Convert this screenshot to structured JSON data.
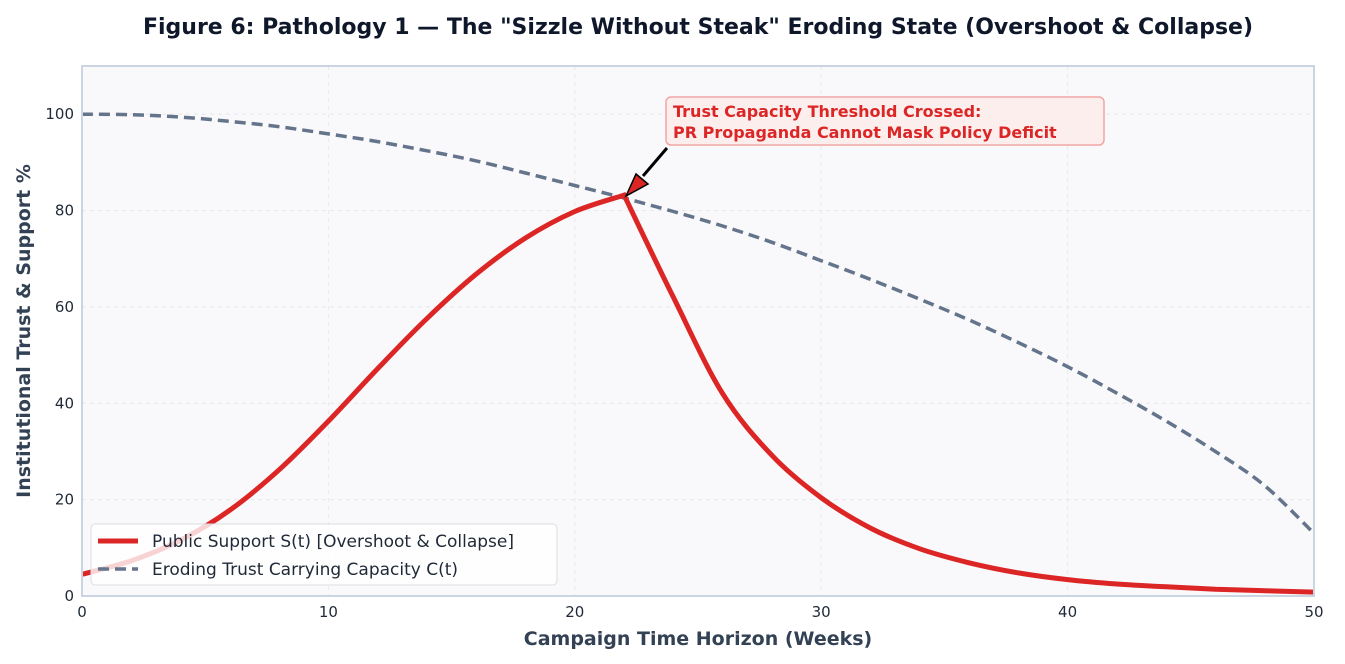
{
  "chart_data": {
    "type": "line",
    "title": "Figure 6: Pathology 1 — The \"Sizzle Without Steak\" Eroding State (Overshoot & Collapse)",
    "xlabel": "Campaign Time Horizon (Weeks)",
    "ylabel": "Institutional Trust & Support %",
    "xlim": [
      0,
      50
    ],
    "ylim": [
      0,
      110
    ],
    "xticks": [
      0,
      10,
      20,
      30,
      40,
      50
    ],
    "yticks": [
      0,
      20,
      40,
      60,
      80,
      100
    ],
    "grid": true,
    "legend_position": "lower-left",
    "series": [
      {
        "name": "Public Support S(t) [Overshoot & Collapse]",
        "color": "#dc2626",
        "style": "solid",
        "x": [
          0,
          2,
          4,
          6,
          8,
          10,
          12,
          14,
          16,
          18,
          20,
          22,
          24,
          26,
          28,
          30,
          32,
          34,
          36,
          38,
          40,
          42,
          44,
          46,
          48,
          50
        ],
        "y": [
          4.5,
          7.3,
          11.6,
          17.8,
          26.2,
          36.3,
          47.2,
          57.6,
          66.8,
          74.3,
          79.8,
          83.2,
          62.0,
          42.0,
          29.2,
          20.4,
          14.1,
          9.8,
          6.9,
          4.8,
          3.4,
          2.5,
          1.9,
          1.4,
          1.1,
          0.8
        ]
      },
      {
        "name": "Eroding Trust Carrying Capacity C(t)",
        "color": "#64748b",
        "style": "dashed",
        "x": [
          0,
          2,
          4,
          6,
          8,
          10,
          12,
          14,
          16,
          18,
          20,
          22,
          24,
          26,
          28,
          30,
          32,
          34,
          36,
          38,
          40,
          42,
          44,
          46,
          48,
          50
        ],
        "y": [
          100,
          99.9,
          99.4,
          98.5,
          97.4,
          95.9,
          94.3,
          92.4,
          90.3,
          87.8,
          85.2,
          82.6,
          79.8,
          76.8,
          73.4,
          69.6,
          65.7,
          61.6,
          57.3,
          52.6,
          47.6,
          42.1,
          36.3,
          30.0,
          22.9,
          13.0
        ]
      }
    ],
    "annotation": {
      "lines": [
        "Trust Capacity Threshold Crossed:",
        "PR Propaganda Cannot Mask Policy Deficit"
      ],
      "point": [
        22,
        83
      ],
      "text_anchor": [
        24,
        100
      ]
    },
    "colors": {
      "plot_bg": "#f9f9fb",
      "frame": "#cbd5e1",
      "annotation_box_fill": "#fdeeee",
      "annotation_box_edge": "#f2a5a5"
    }
  }
}
